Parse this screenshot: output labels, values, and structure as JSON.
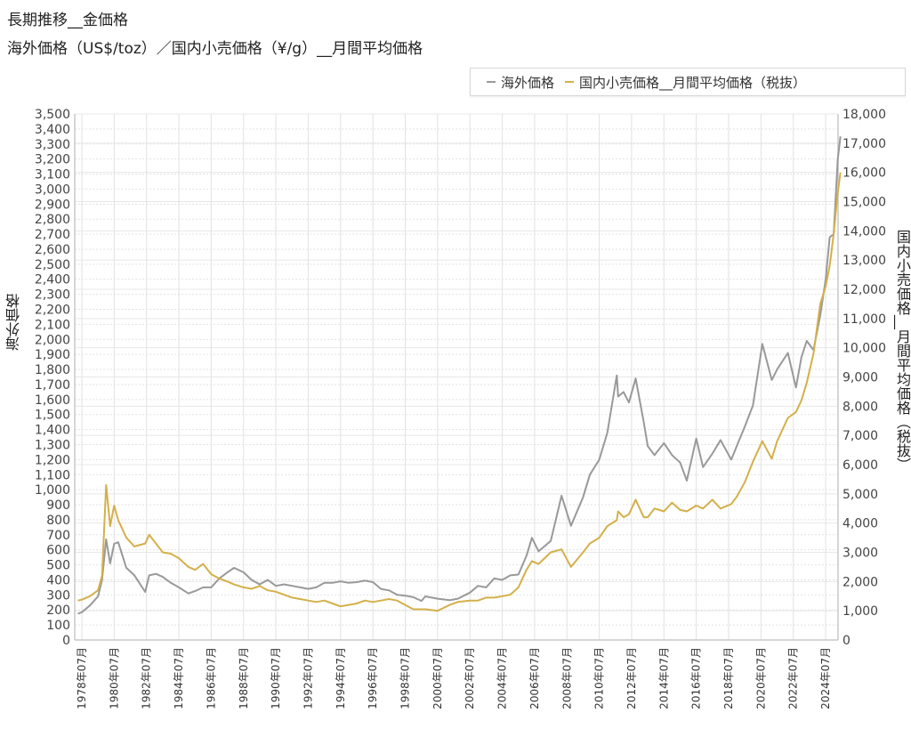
{
  "header": {
    "title": "長期推移__金価格",
    "subtitle": "海外価格（US$/toz）／国内小売価格（¥/g）__月間平均価格"
  },
  "legend": {
    "items": [
      {
        "label": "海外価格",
        "color": "#999999"
      },
      {
        "label": "国内小売価格__月間平均価格（税抜）",
        "color": "#d4b04a"
      }
    ]
  },
  "axes": {
    "left_label": "海外価格",
    "right_label": "国内小売価格__月間平均価格（税抜）"
  },
  "chart_data": {
    "type": "line",
    "title": "長期推移__金価格",
    "subtitle": "海外価格（US$/toz）／国内小売価格（¥/g）__月間平均価格",
    "xlabel": "",
    "ylabel": "海外価格",
    "y2label": "国内小売価格__月間平均価格（税抜）",
    "ylim": [
      0,
      3500
    ],
    "y2lim": [
      0,
      18000
    ],
    "grid": true,
    "legend_position": "top-right",
    "x_ticks": [
      "1978年07月",
      "1980年07月",
      "1982年07月",
      "1984年07月",
      "1986年07月",
      "1988年07月",
      "1990年07月",
      "1992年07月",
      "1994年07月",
      "1996年07月",
      "1998年07月",
      "2000年07月",
      "2002年07月",
      "2004年07月",
      "2006年07月",
      "2008年07月",
      "2010年07月",
      "2012年07月",
      "2014年07月",
      "2016年07月",
      "2018年07月",
      "2020年07月",
      "2022年07月",
      "2024年07月"
    ],
    "y_ticks_left": [
      "0",
      "100",
      "200",
      "300",
      "400",
      "500",
      "600",
      "700",
      "800",
      "900",
      "1,000",
      "1,100",
      "1,200",
      "1,300",
      "1,400",
      "1,500",
      "1,600",
      "1,700",
      "1,800",
      "1,900",
      "2,000",
      "2,100",
      "2,200",
      "2,300",
      "2,400",
      "2,500",
      "2,600",
      "2,700",
      "2,800",
      "2,900",
      "3,000",
      "3,100",
      "3,200",
      "3,300",
      "3,400",
      "3,500"
    ],
    "y_ticks_right": [
      "0",
      "1,000",
      "2,000",
      "3,000",
      "4,000",
      "5,000",
      "6,000",
      "7,000",
      "8,000",
      "9,000",
      "10,000",
      "11,000",
      "12,000",
      "13,000",
      "14,000",
      "15,000",
      "16,000",
      "17,000",
      "18,000"
    ],
    "x": [
      "1978-04",
      "1978-07",
      "1979-01",
      "1979-07",
      "1979-10",
      "1980-01",
      "1980-04",
      "1980-07",
      "1980-10",
      "1981-04",
      "1981-10",
      "1982-06",
      "1982-09",
      "1983-02",
      "1983-07",
      "1984-01",
      "1984-07",
      "1985-02",
      "1985-07",
      "1986-01",
      "1986-07",
      "1987-01",
      "1987-07",
      "1987-12",
      "1988-07",
      "1989-01",
      "1989-07",
      "1990-01",
      "1990-07",
      "1991-01",
      "1991-07",
      "1992-01",
      "1992-07",
      "1993-01",
      "1993-07",
      "1994-01",
      "1994-07",
      "1995-01",
      "1995-07",
      "1996-01",
      "1996-07",
      "1997-01",
      "1997-07",
      "1998-01",
      "1998-07",
      "1999-01",
      "1999-07",
      "1999-10",
      "2000-07",
      "2001-04",
      "2001-10",
      "2002-07",
      "2003-01",
      "2003-07",
      "2004-01",
      "2004-07",
      "2005-01",
      "2005-07",
      "2006-01",
      "2006-05",
      "2006-10",
      "2007-07",
      "2008-03",
      "2008-10",
      "2009-07",
      "2009-12",
      "2010-07",
      "2011-01",
      "2011-08",
      "2011-09",
      "2012-01",
      "2012-05",
      "2012-10",
      "2013-04",
      "2013-07",
      "2013-12",
      "2014-07",
      "2015-01",
      "2015-07",
      "2015-12",
      "2016-07",
      "2016-12",
      "2017-07",
      "2018-01",
      "2018-09",
      "2019-01",
      "2019-07",
      "2020-01",
      "2020-08",
      "2021-03",
      "2021-07",
      "2022-03",
      "2022-09",
      "2023-01",
      "2023-05",
      "2023-10",
      "2024-03",
      "2024-07",
      "2024-10",
      "2025-01",
      "2025-04",
      "2025-06"
    ],
    "series": [
      {
        "name": "海外価格",
        "axis": "left",
        "unit": "US$/toz",
        "color": "#999999",
        "values": [
          175,
          185,
          230,
          290,
          400,
          670,
          510,
          640,
          650,
          480,
          430,
          320,
          430,
          440,
          420,
          380,
          350,
          310,
          325,
          350,
          350,
          410,
          450,
          480,
          450,
          400,
          370,
          400,
          360,
          370,
          360,
          350,
          340,
          350,
          380,
          380,
          390,
          380,
          385,
          395,
          385,
          340,
          330,
          300,
          295,
          285,
          260,
          290,
          275,
          265,
          275,
          315,
          360,
          350,
          410,
          400,
          430,
          435,
          560,
          680,
          590,
          660,
          960,
          760,
          950,
          1100,
          1200,
          1380,
          1760,
          1620,
          1650,
          1580,
          1740,
          1450,
          1290,
          1230,
          1310,
          1230,
          1180,
          1060,
          1340,
          1150,
          1240,
          1330,
          1200,
          1290,
          1420,
          1560,
          1970,
          1730,
          1800,
          1910,
          1680,
          1880,
          1990,
          1930,
          2160,
          2400,
          2680,
          2700,
          3200,
          3350
        ]
      },
      {
        "name": "国内小売価格__月間平均価格（税抜）",
        "axis": "right",
        "unit": "¥/g",
        "color": "#d4b04a",
        "values": [
          1350,
          1380,
          1500,
          1700,
          2200,
          5300,
          3900,
          4600,
          4100,
          3500,
          3200,
          3300,
          3600,
          3300,
          3000,
          2950,
          2800,
          2500,
          2400,
          2600,
          2250,
          2100,
          2000,
          1900,
          1800,
          1750,
          1850,
          1700,
          1650,
          1550,
          1450,
          1400,
          1350,
          1300,
          1350,
          1250,
          1150,
          1200,
          1250,
          1350,
          1300,
          1350,
          1400,
          1350,
          1200,
          1050,
          1050,
          1050,
          1000,
          1200,
          1300,
          1350,
          1350,
          1450,
          1450,
          1500,
          1550,
          1800,
          2400,
          2700,
          2600,
          3000,
          3100,
          2500,
          3000,
          3300,
          3500,
          3900,
          4100,
          4400,
          4200,
          4300,
          4800,
          4200,
          4200,
          4500,
          4400,
          4700,
          4450,
          4400,
          4600,
          4500,
          4800,
          4500,
          4650,
          4900,
          5400,
          6100,
          6800,
          6200,
          6800,
          7600,
          7800,
          8200,
          8800,
          9800,
          11500,
          12100,
          12800,
          13900,
          15300,
          16000
        ]
      }
    ]
  }
}
